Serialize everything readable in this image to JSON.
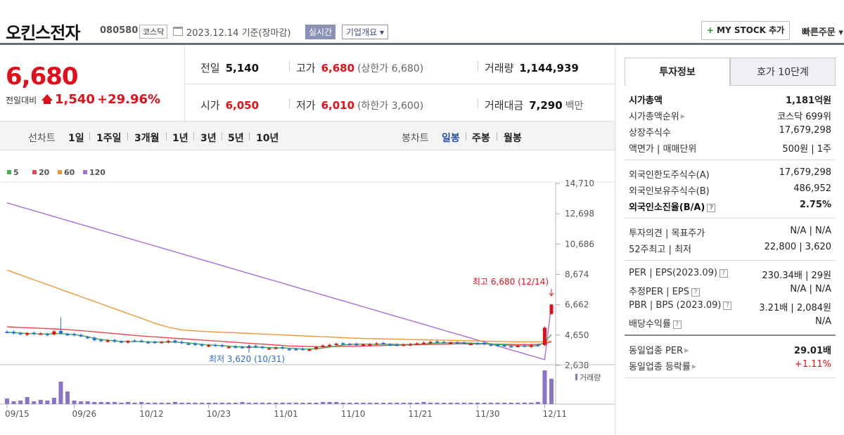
{
  "header": {
    "company": "오킨스전자",
    "code": "080580",
    "market": "코스닥",
    "date": "2023.12.14 기준(장마감)",
    "live_badge": "실시간",
    "corp_badge": "기업개요 ▾",
    "mystock_label": "MY STOCK 추가",
    "mystock_plus": "+",
    "quick_order": "빠른주문 ▾"
  },
  "price": {
    "current": "6,680",
    "change_label": "전일대비",
    "change_value": "1,540",
    "change_pct": "+29.96%"
  },
  "stats": {
    "prev_label": "전일",
    "prev": "5,140",
    "high_label": "고가",
    "high": "6,680",
    "upper_limit": "(상한가 6,680)",
    "volume_label": "거래량",
    "volume": "1,144,939",
    "open_label": "시가",
    "open": "6,050",
    "low_label": "저가",
    "low": "6,010",
    "lower_limit": "(하한가 3,600)",
    "amount_label": "거래대금",
    "amount": "7,290",
    "amount_unit": "백만"
  },
  "periodbar": {
    "line_label": "선차트",
    "line_periods": [
      "1일",
      "1주일",
      "3개월",
      "1년",
      "3년",
      "5년",
      "10년"
    ],
    "candle_label": "봉차트",
    "candle_periods": [
      "일봉",
      "주봉",
      "월봉"
    ],
    "selected": "일봉"
  },
  "chart_data": {
    "type": "candlestick",
    "legend": [
      {
        "name": "5",
        "color": "#3cb34a"
      },
      {
        "name": "20",
        "color": "#e8474f"
      },
      {
        "name": "60",
        "color": "#f0963b"
      },
      {
        "name": "120",
        "color": "#a76fd8"
      }
    ],
    "y_ticks": [
      "14,710",
      "12,698",
      "10,686",
      "8,674",
      "6,662",
      "4,650",
      "2,638"
    ],
    "x_ticks": [
      "09/15",
      "09/26",
      "10/12",
      "10/23",
      "11/01",
      "11/10",
      "11/21",
      "11/30",
      "12/11"
    ],
    "ylim": [
      2638,
      14710
    ],
    "high_annotation": "최고 6,680 (12/14)",
    "low_annotation": "최저 3,620 (10/31)",
    "volume_label": "거래량",
    "colors": {
      "up": "#e0101a",
      "down": "#2a6bd6",
      "volume": "#8a73c9"
    },
    "closes": [
      4840,
      4760,
      4700,
      4780,
      4720,
      4760,
      4660,
      4900,
      4750,
      4700,
      4640,
      4560,
      4450,
      4310,
      4250,
      4300,
      4210,
      4180,
      4260,
      4250,
      4220,
      4180,
      4150,
      4200,
      4260,
      4170,
      4120,
      4080,
      4000,
      3950,
      3980,
      3960,
      3900,
      3870,
      3840,
      3820,
      3900,
      3850,
      3800,
      3780,
      3820,
      3760,
      3700,
      3720,
      3700,
      3700,
      3850,
      3960,
      4000,
      4080,
      4100,
      4050,
      3980,
      4020,
      4050,
      4100,
      4080,
      3990,
      3980,
      4020,
      4050,
      4100,
      4150,
      4200,
      4170,
      4160,
      4150,
      4120,
      4110,
      4080,
      4100,
      4060,
      3980,
      3950,
      3950,
      3900,
      3940,
      3900,
      3980,
      3960,
      5140,
      6680
    ],
    "ma5": [
      4840,
      4820,
      4780,
      4760,
      4740,
      4730,
      4720,
      4760,
      4750,
      4720,
      4680,
      4620,
      4540,
      4440,
      4360,
      4310,
      4260,
      4230,
      4220,
      4230,
      4210,
      4200,
      4190,
      4180,
      4190,
      4180,
      4160,
      4130,
      4080,
      4030,
      4000,
      3970,
      3950,
      3920,
      3890,
      3870,
      3860,
      3850,
      3840,
      3820,
      3810,
      3800,
      3780,
      3760,
      3730,
      3720,
      3740,
      3790,
      3860,
      3930,
      3990,
      4040,
      4050,
      4050,
      4040,
      4040,
      4050,
      4040,
      4030,
      4020,
      4030,
      4040,
      4060,
      4100,
      4120,
      4140,
      4150,
      4150,
      4140,
      4120,
      4100,
      4090,
      4060,
      4030,
      4000,
      3970,
      3950,
      3930,
      3930,
      3940,
      4180,
      4690
    ],
    "ma20": [
      5200,
      5180,
      5160,
      5140,
      5120,
      5100,
      5080,
      5060,
      5040,
      5010,
      4980,
      4950,
      4910,
      4870,
      4830,
      4790,
      4750,
      4710,
      4670,
      4630,
      4590,
      4560,
      4530,
      4500,
      4470,
      4440,
      4410,
      4380,
      4350,
      4320,
      4290,
      4260,
      4230,
      4200,
      4170,
      4140,
      4110,
      4080,
      4050,
      4020,
      3990,
      3960,
      3930,
      3920,
      3900,
      3890,
      3880,
      3880,
      3880,
      3890,
      3900,
      3910,
      3920,
      3930,
      3940,
      3950,
      3960,
      3970,
      3980,
      3990,
      4000,
      4010,
      4020,
      4030,
      4040,
      4050,
      4060,
      4070,
      4070,
      4070,
      4070,
      4060,
      4060,
      4050,
      4040,
      4030,
      4020,
      4020,
      4020,
      4030,
      4090,
      4190
    ],
    "ma60": [
      8970,
      8800,
      8640,
      8480,
      8320,
      8160,
      8000,
      7840,
      7680,
      7520,
      7360,
      7200,
      7040,
      6880,
      6720,
      6560,
      6400,
      6240,
      6080,
      5920,
      5760,
      5600,
      5440,
      5300,
      5180,
      5080,
      5000,
      4960,
      4930,
      4900,
      4880,
      4860,
      4840,
      4820,
      4800,
      4780,
      4760,
      4740,
      4720,
      4700,
      4680,
      4660,
      4640,
      4620,
      4600,
      4580,
      4560,
      4540,
      4520,
      4500,
      4480,
      4460,
      4440,
      4430,
      4420,
      4410,
      4400,
      4390,
      4380,
      4370,
      4360,
      4350,
      4340,
      4330,
      4320,
      4310,
      4300,
      4290,
      4280,
      4270,
      4260,
      4250,
      4240,
      4230,
      4220,
      4210,
      4200,
      4200,
      4200,
      4200,
      4220,
      4260
    ],
    "ma120": [
      13420,
      13290,
      13160,
      13030,
      12900,
      12770,
      12640,
      12510,
      12380,
      12250,
      12120,
      11990,
      11860,
      11730,
      11600,
      11470,
      11340,
      11210,
      11080,
      10950,
      10820,
      10690,
      10560,
      10430,
      10300,
      10170,
      10040,
      9910,
      9780,
      9650,
      9520,
      9390,
      9260,
      9130,
      9000,
      8870,
      8740,
      8610,
      8480,
      8350,
      8220,
      8090,
      7960,
      7830,
      7700,
      7570,
      7440,
      7310,
      7180,
      7050,
      6920,
      6790,
      6660,
      6530,
      6400,
      6270,
      6140,
      6010,
      5880,
      5750,
      5620,
      5490,
      5360,
      5230,
      5100,
      4970,
      4840,
      4710,
      4580,
      4450,
      4320,
      4190,
      4060,
      3930,
      3800,
      3670,
      3540,
      3410,
      3280,
      3150,
      3020,
      6680
    ]
  },
  "right_panel": {
    "tab_active": "투자정보",
    "tab_other": "호가 10단계",
    "sections": [
      [
        {
          "k": "시가총액",
          "v": "1,181억원",
          "kb": true,
          "vb": true
        },
        {
          "k": "시가총액순위",
          "v": "코스닥 699위",
          "tri": true
        },
        {
          "k": "상장주식수",
          "v": "17,679,298"
        },
        {
          "k": "액면가 | 매매단위",
          "v": "500원 | 1주"
        }
      ],
      [
        {
          "k": "외국인한도주식수(A)",
          "v": "17,679,298"
        },
        {
          "k": "외국인보유주식수(B)",
          "v": "486,952"
        },
        {
          "k": "외국인소진율(B/A)",
          "v": "2.75%",
          "kb": true,
          "vb": true,
          "q": true
        }
      ],
      [
        {
          "k": "투자의견 | 목표주가",
          "v": "N/A | N/A"
        },
        {
          "k": "52주최고 | 최저",
          "v": "22,800 | 3,620"
        }
      ],
      [
        {
          "k": "PER | EPS(2023.09)",
          "v": "230.34배 | 29원",
          "q": true
        },
        {
          "k": "추정PER | EPS",
          "v": "N/A | N/A",
          "q": true
        },
        {
          "k": "PBR | BPS (2023.09)",
          "v": "3.21배 | 2,084원",
          "q": true
        },
        {
          "k": "배당수익률",
          "v": "N/A",
          "q": true
        }
      ],
      [
        {
          "k": "동일업종 PER",
          "v": "29.01배",
          "vb": true,
          "tri": true
        },
        {
          "k": "동일업종 등락률",
          "v": "+1.11%",
          "up": true,
          "tri": true
        }
      ]
    ]
  }
}
